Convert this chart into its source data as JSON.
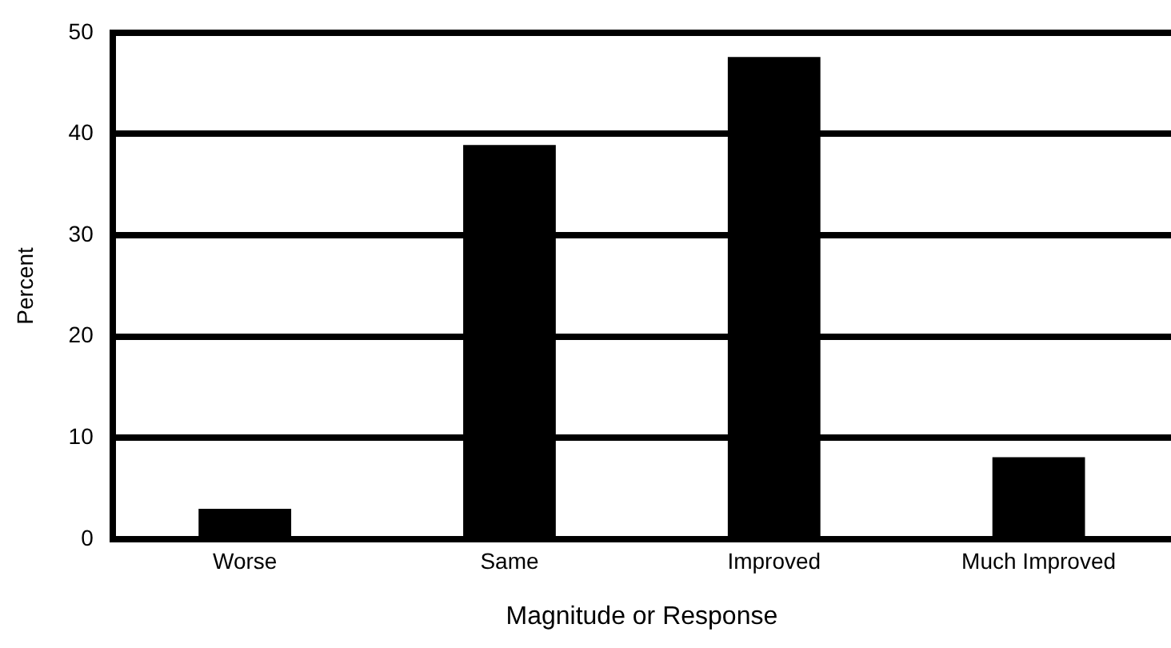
{
  "chart_data": {
    "type": "bar",
    "xlabel": "Magnitude or Response",
    "ylabel": "Percent",
    "categories": [
      "Worse",
      "Same",
      "Improved",
      "Much Improved"
    ],
    "values": [
      3,
      38.9,
      47.6,
      8.1
    ],
    "color": "#000000",
    "ylim": [
      0,
      50
    ],
    "yticks": [
      0,
      10,
      20,
      30,
      40,
      50
    ],
    "grid": "y",
    "legend": false
  }
}
